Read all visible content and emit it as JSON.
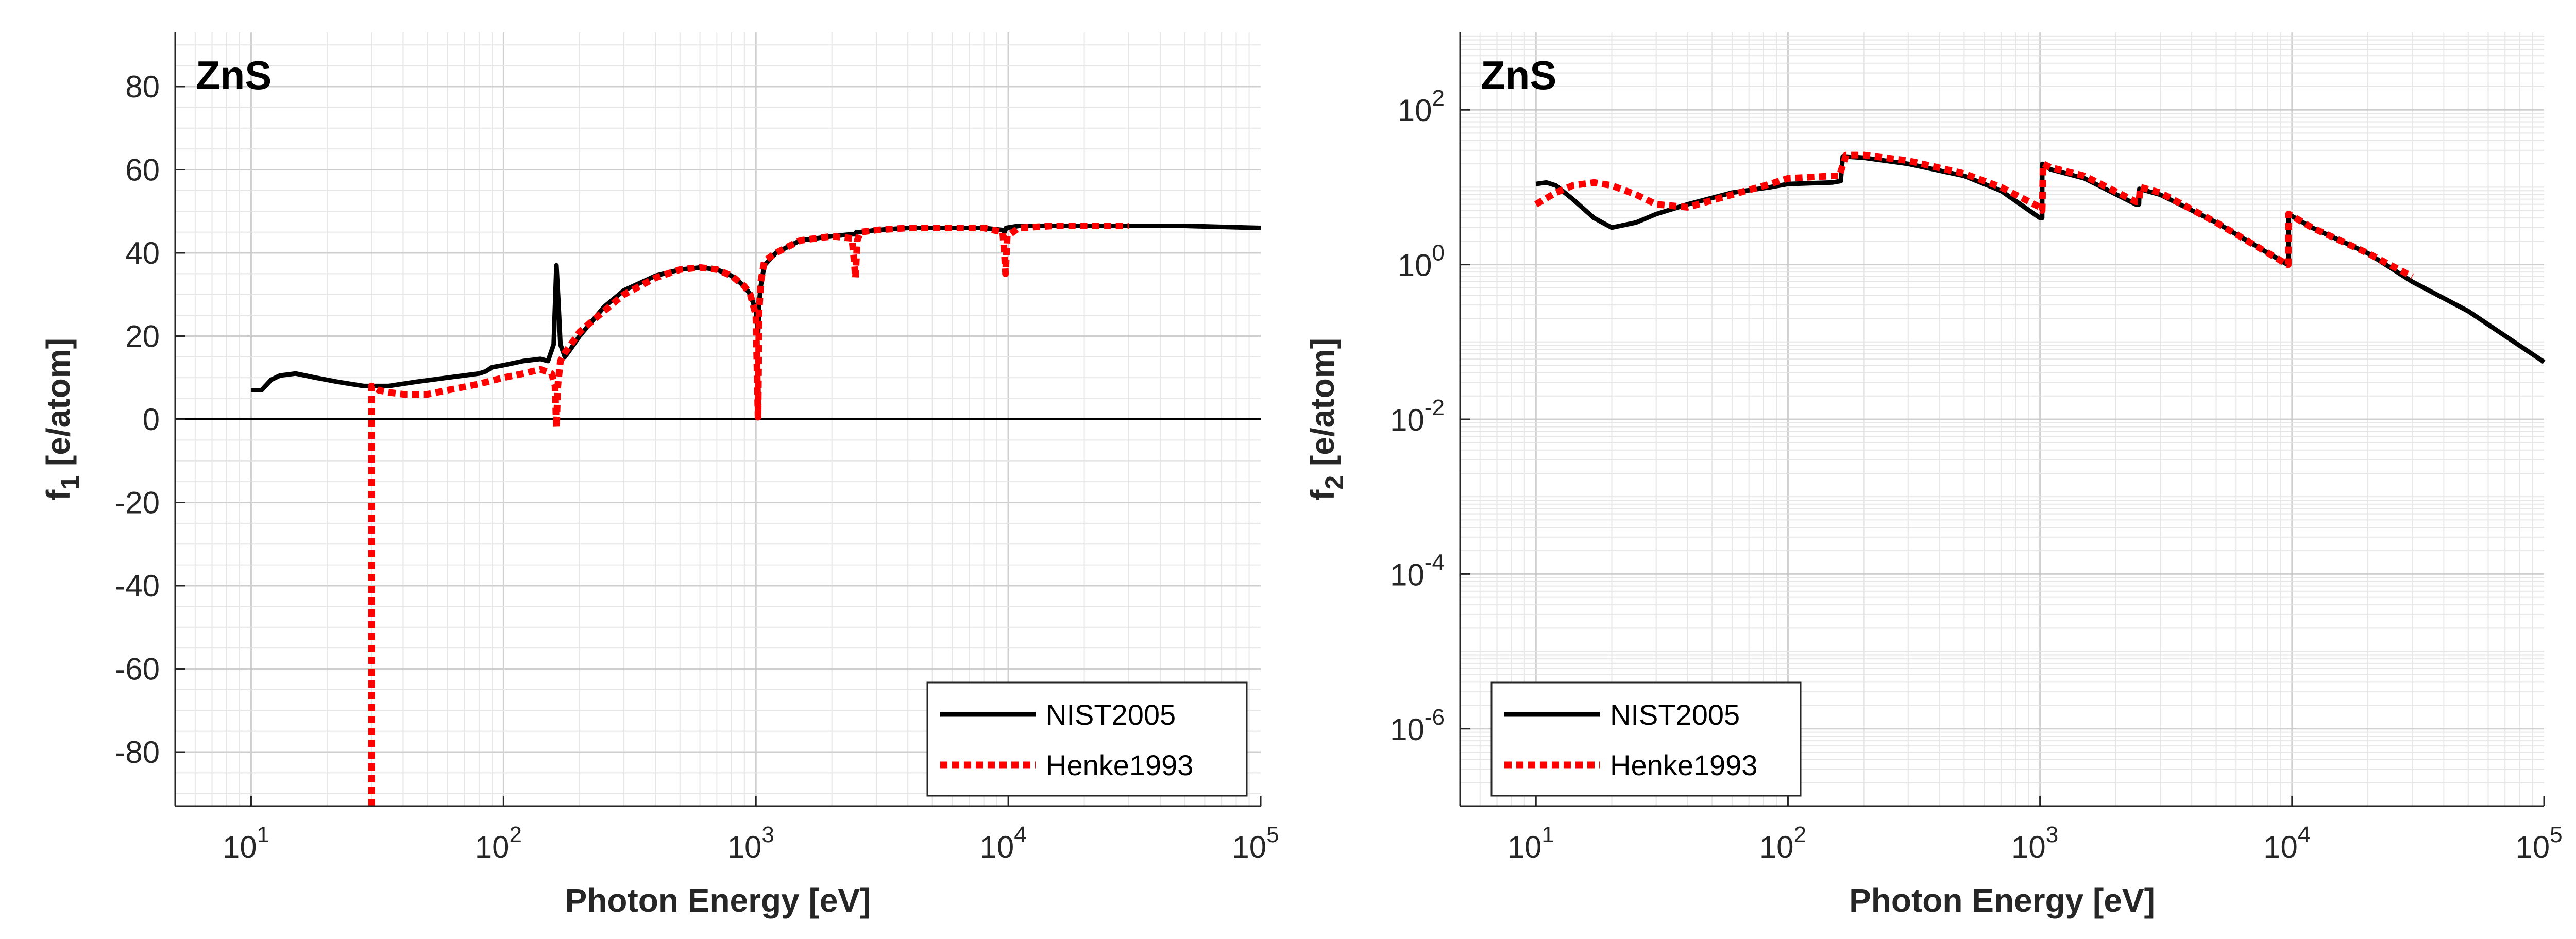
{
  "chart_data": [
    {
      "type": "line",
      "title": "ZnS",
      "xlabel": "Photon Energy [eV]",
      "ylabel": "f",
      "ylabel_sub": "1",
      "ylabel_unit": " [e/atom]",
      "xscale": "log",
      "xlim": [
        5,
        100000
      ],
      "ylim": [
        -93,
        93
      ],
      "x_ticks": [
        {
          "label": "10",
          "exp": "1"
        },
        {
          "label": "10",
          "exp": "2"
        },
        {
          "label": "10",
          "exp": "3"
        },
        {
          "label": "10",
          "exp": "4"
        },
        {
          "label": "10",
          "exp": "5"
        }
      ],
      "y_ticks": [
        "-80",
        "-60",
        "-40",
        "-20",
        "0",
        "20",
        "40",
        "60",
        "80"
      ],
      "grid": true,
      "legend_position": "bottom-right",
      "series": [
        {
          "name": "NIST2005",
          "color": "#000000",
          "style": "solid",
          "x": [
            10,
            11,
            12,
            13,
            15,
            18,
            22,
            28,
            35,
            45,
            60,
            80,
            85,
            90,
            100,
            120,
            140,
            150,
            158,
            162,
            165,
            168,
            175,
            185,
            200,
            250,
            300,
            400,
            500,
            600,
            700,
            800,
            900,
            950,
            1000,
            1020,
            1030,
            1045,
            1080,
            1200,
            1500,
            2000,
            2400,
            2470,
            2500,
            2600,
            3000,
            4000,
            6000,
            8000,
            9500,
            9660,
            9800,
            11000,
            15000,
            20000,
            30000,
            50000,
            100000
          ],
          "y": [
            7,
            7,
            9.5,
            10.5,
            11,
            10,
            9,
            8,
            8,
            9,
            10,
            11,
            11.5,
            12.5,
            13,
            14,
            14.5,
            14,
            18,
            37,
            28,
            18,
            15,
            17,
            20,
            27,
            31,
            34.5,
            36,
            36.5,
            36,
            34.5,
            32,
            30,
            26,
            20,
            28,
            32,
            37,
            40,
            43,
            44,
            44.5,
            44.5,
            45,
            45,
            45.5,
            46,
            46,
            46,
            45.5,
            45,
            46,
            46.5,
            46.5,
            46.5,
            46.5,
            46.5,
            46
          ]
        },
        {
          "name": "Henke1993",
          "color": "#ff0000",
          "style": "dotted",
          "x": [
            30,
            30,
            32,
            35,
            40,
            50,
            60,
            80,
            100,
            120,
            140,
            155,
            160,
            162,
            164,
            168,
            175,
            185,
            200,
            250,
            300,
            400,
            500,
            600,
            700,
            800,
            900,
            950,
            1000,
            1020,
            1030,
            1045,
            1080,
            1200,
            1500,
            2000,
            2400,
            2450,
            2480,
            2520,
            2600,
            3000,
            4000,
            6000,
            8000,
            9500,
            9650,
            9750,
            9900,
            11000,
            15000,
            20000,
            30000
          ],
          "y": [
            -93,
            8,
            7,
            6.5,
            6,
            6,
            7,
            8.5,
            10,
            11,
            12,
            11,
            8,
            -2,
            8,
            14,
            16,
            18,
            21,
            26,
            30,
            34,
            36,
            36.5,
            36,
            34.5,
            32,
            30,
            25,
            0.5,
            26,
            33,
            38,
            40,
            43,
            44,
            43.5,
            38,
            34,
            43,
            45,
            45.5,
            46,
            46,
            46,
            45,
            40,
            35,
            44,
            46,
            46.5,
            46.5,
            46.5
          ]
        }
      ]
    },
    {
      "type": "line",
      "title": "ZnS",
      "xlabel": "Photon Energy [eV]",
      "ylabel": "f",
      "ylabel_sub": "2",
      "ylabel_unit": " [e/atom]",
      "xscale": "log",
      "yscale": "log",
      "xlim": [
        5,
        100000
      ],
      "ylim": [
        1e-07,
        1000
      ],
      "x_ticks": [
        {
          "label": "10",
          "exp": "1"
        },
        {
          "label": "10",
          "exp": "2"
        },
        {
          "label": "10",
          "exp": "3"
        },
        {
          "label": "10",
          "exp": "4"
        },
        {
          "label": "10",
          "exp": "5"
        }
      ],
      "y_ticks": [
        {
          "label": "10",
          "exp": "-6",
          "value": 1e-06
        },
        {
          "label": "10",
          "exp": "-4",
          "value": 0.0001
        },
        {
          "label": "10",
          "exp": "-2",
          "value": 0.01
        },
        {
          "label": "10",
          "exp": "0",
          "value": 1
        },
        {
          "label": "10",
          "exp": "2",
          "value": 100
        }
      ],
      "grid": true,
      "legend_position": "bottom-left",
      "series": [
        {
          "name": "NIST2005",
          "color": "#000000",
          "style": "solid",
          "x": [
            10,
            11,
            12,
            14,
            17,
            20,
            25,
            30,
            40,
            60,
            85,
            100,
            150,
            162,
            165,
            200,
            300,
            500,
            700,
            1000,
            1020,
            1021,
            1100,
            1500,
            2400,
            2470,
            2480,
            3000,
            5000,
            9600,
            9660,
            9670,
            12000,
            20000,
            30000,
            50000,
            100000
          ],
          "y": [
            11,
            11.5,
            10.5,
            7,
            4,
            3,
            3.5,
            4.5,
            6,
            8.5,
            10,
            11,
            11.5,
            12,
            25,
            24,
            20,
            14,
            9,
            4,
            4,
            20,
            17,
            13,
            6,
            6,
            9.5,
            8,
            3.5,
            1,
            1,
            4.5,
            3,
            1.4,
            0.6,
            0.25,
            0.055
          ]
        },
        {
          "name": "Henke1993",
          "color": "#ff0000",
          "style": "dotted",
          "x": [
            10,
            12,
            14,
            17,
            20,
            25,
            30,
            40,
            60,
            85,
            100,
            150,
            160,
            170,
            200,
            300,
            500,
            700,
            1000,
            1020,
            1030,
            1100,
            1500,
            2400,
            2470,
            2500,
            3000,
            5000,
            9600,
            9660,
            9700,
            12000,
            20000,
            30000
          ],
          "y": [
            6,
            8.5,
            10.5,
            11.5,
            10.5,
            8,
            6,
            5.5,
            8,
            11,
            13,
            14,
            14,
            26,
            26,
            22,
            15,
            10,
            5.5,
            5,
            20,
            18,
            14,
            6.5,
            6.5,
            10,
            8.5,
            3.5,
            1,
            1,
            4.5,
            3,
            1.4,
            0.7
          ]
        }
      ]
    }
  ]
}
